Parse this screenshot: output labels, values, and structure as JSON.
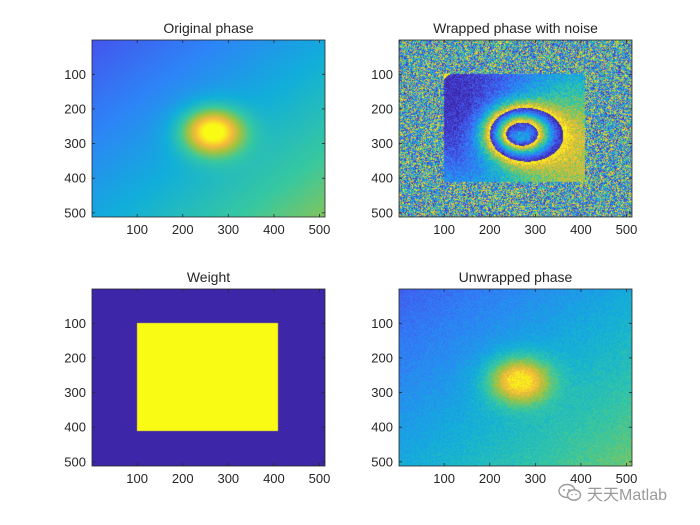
{
  "chart_data": [
    {
      "type": "heatmap",
      "title": "Original phase",
      "xlabel": "",
      "ylabel": "",
      "xlim": [
        1,
        512
      ],
      "ylim": [
        1,
        512
      ],
      "x_ticks": [
        "100",
        "200",
        "300",
        "400",
        "500"
      ],
      "y_ticks": [
        "100",
        "200",
        "300",
        "400",
        "500"
      ],
      "y_direction": "reversed",
      "colormap": "parula",
      "description_values": {
        "gradient": "low top-left to high bottom-right",
        "peak_center": [
          265,
          265
        ],
        "peak_radius": 60
      }
    },
    {
      "type": "heatmap",
      "title": "Wrapped phase with noise",
      "xlabel": "",
      "ylabel": "",
      "xlim": [
        1,
        512
      ],
      "ylim": [
        1,
        512
      ],
      "x_ticks": [
        "100",
        "200",
        "300",
        "400",
        "500"
      ],
      "y_ticks": [
        "100",
        "200",
        "300",
        "400",
        "500"
      ],
      "y_direction": "reversed",
      "colormap": "parula",
      "signal_region": {
        "x": [
          100,
          410
        ],
        "y": [
          100,
          410
        ]
      },
      "fringe_center": [
        265,
        265
      ]
    },
    {
      "type": "heatmap",
      "title": "Weight",
      "xlabel": "",
      "ylabel": "",
      "xlim": [
        1,
        512
      ],
      "ylim": [
        1,
        512
      ],
      "x_ticks": [
        "100",
        "200",
        "300",
        "400",
        "500"
      ],
      "y_ticks": [
        "100",
        "200",
        "300",
        "400",
        "500"
      ],
      "y_direction": "reversed",
      "colormap": "parula",
      "weight_one_region": {
        "x": [
          100,
          410
        ],
        "y": [
          100,
          410
        ]
      },
      "weight_values": {
        "inside": 1,
        "outside": 0
      }
    },
    {
      "type": "heatmap",
      "title": "Unwrapped phase",
      "xlabel": "",
      "ylabel": "",
      "xlim": [
        1,
        512
      ],
      "ylim": [
        1,
        512
      ],
      "x_ticks": [
        "100",
        "200",
        "300",
        "400",
        "500"
      ],
      "y_ticks": [
        "100",
        "200",
        "300",
        "400",
        "500"
      ],
      "y_direction": "reversed",
      "colormap": "parula",
      "peak_center": [
        265,
        265
      ]
    }
  ],
  "colors": {
    "parula_low": "#3e26a8",
    "parula_high": "#f9fb15",
    "axis": "#262626"
  },
  "watermark": {
    "text": "天天Matlab",
    "icon": "wechat-icon"
  }
}
